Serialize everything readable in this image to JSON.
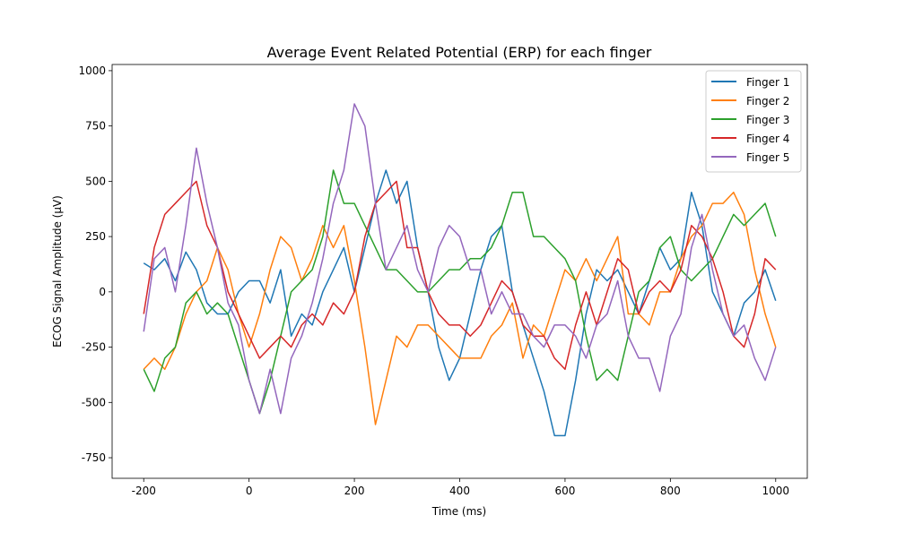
{
  "chart_data": {
    "type": "line",
    "title": "Average Event Related Potential (ERP) for each finger",
    "x_label": "Time (ms)",
    "y_label": "ECOG Signal Amplitude (μV)",
    "x": [
      -200,
      -180,
      -160,
      -140,
      -120,
      -100,
      -80,
      -60,
      -40,
      -20,
      0,
      20,
      40,
      60,
      80,
      100,
      120,
      140,
      160,
      180,
      200,
      220,
      240,
      260,
      280,
      300,
      320,
      340,
      360,
      380,
      400,
      420,
      440,
      460,
      480,
      500,
      520,
      540,
      560,
      580,
      600,
      620,
      640,
      660,
      680,
      700,
      720,
      740,
      760,
      780,
      800,
      820,
      840,
      860,
      880,
      900,
      920,
      940,
      960,
      980,
      1000
    ],
    "series": [
      {
        "name": "Finger 1",
        "color": "#1f77b4",
        "values": [
          130,
          100,
          150,
          50,
          180,
          100,
          -50,
          -100,
          -100,
          0,
          50,
          50,
          -50,
          100,
          -200,
          -100,
          -150,
          0,
          100,
          200,
          0,
          200,
          400,
          550,
          400,
          500,
          200,
          0,
          -250,
          -400,
          -300,
          -100,
          100,
          250,
          300,
          0,
          -150,
          -300,
          -450,
          -650,
          -650,
          -400,
          -100,
          100,
          50,
          100,
          0,
          -100,
          50,
          200,
          100,
          150,
          450,
          300,
          0,
          -100,
          -200,
          -50,
          0,
          100,
          -40
        ]
      },
      {
        "name": "Finger 2",
        "color": "#ff7f0e",
        "values": [
          -350,
          -300,
          -350,
          -250,
          -100,
          0,
          50,
          200,
          100,
          -100,
          -250,
          -100,
          100,
          250,
          200,
          50,
          150,
          300,
          200,
          300,
          50,
          -250,
          -600,
          -400,
          -200,
          -250,
          -150,
          -150,
          -200,
          -250,
          -300,
          -300,
          -300,
          -200,
          -150,
          -50,
          -300,
          -150,
          -200,
          -50,
          100,
          50,
          150,
          50,
          150,
          250,
          -100,
          -100,
          -150,
          0,
          0,
          150,
          250,
          300,
          400,
          400,
          450,
          350,
          100,
          -100,
          -250
        ]
      },
      {
        "name": "Finger 3",
        "color": "#2ca02c",
        "values": [
          -350,
          -450,
          -300,
          -250,
          -50,
          0,
          -100,
          -50,
          -100,
          -250,
          -400,
          -550,
          -400,
          -200,
          0,
          50,
          100,
          250,
          550,
          400,
          400,
          300,
          200,
          100,
          100,
          50,
          0,
          0,
          50,
          100,
          100,
          150,
          150,
          200,
          300,
          450,
          450,
          250,
          250,
          200,
          150,
          50,
          -200,
          -400,
          -350,
          -400,
          -200,
          0,
          50,
          200,
          250,
          100,
          50,
          100,
          150,
          250,
          350,
          300,
          350,
          400,
          250
        ]
      },
      {
        "name": "Finger 4",
        "color": "#d62728",
        "values": [
          -100,
          200,
          350,
          400,
          450,
          500,
          300,
          200,
          0,
          -100,
          -200,
          -300,
          -250,
          -200,
          -250,
          -150,
          -100,
          -150,
          -50,
          -100,
          0,
          250,
          400,
          450,
          500,
          200,
          200,
          0,
          -100,
          -150,
          -150,
          -200,
          -150,
          -50,
          50,
          0,
          -150,
          -200,
          -200,
          -300,
          -350,
          -150,
          0,
          -150,
          0,
          150,
          100,
          -100,
          0,
          50,
          0,
          100,
          300,
          250,
          150,
          0,
          -200,
          -250,
          -100,
          150,
          100
        ]
      },
      {
        "name": "Finger 5",
        "color": "#9467bd",
        "values": [
          -180,
          150,
          200,
          0,
          300,
          650,
          400,
          200,
          -50,
          -150,
          -400,
          -550,
          -350,
          -550,
          -300,
          -200,
          -50,
          150,
          400,
          550,
          850,
          750,
          400,
          100,
          200,
          300,
          100,
          0,
          200,
          300,
          250,
          100,
          100,
          -100,
          0,
          -100,
          -100,
          -200,
          -250,
          -150,
          -150,
          -200,
          -300,
          -150,
          -100,
          50,
          -200,
          -300,
          -300,
          -450,
          -200,
          -100,
          200,
          350,
          100,
          -100,
          -200,
          -150,
          -300,
          -400,
          -250
        ]
      }
    ],
    "xlim": [
      -260,
      1060
    ],
    "ylim": [
      -843,
      1028
    ],
    "xticks": [
      -200,
      0,
      200,
      400,
      600,
      800,
      1000
    ],
    "yticks": [
      -750,
      -500,
      -250,
      0,
      250,
      500,
      750,
      1000
    ],
    "legend": "upper right"
  }
}
